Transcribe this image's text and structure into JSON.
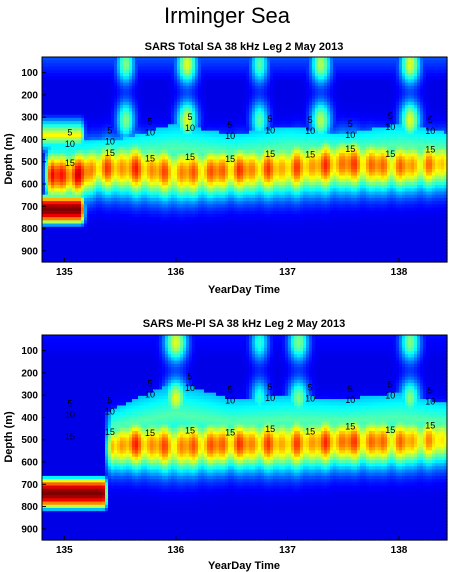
{
  "figure": {
    "suptitle": "Irminger Sea"
  },
  "chart_data": [
    {
      "type": "heatmap",
      "title": "SARS Total SA 38 kHz Leg 2 May 2013",
      "xlabel": "YearDay Time",
      "ylabel": "Depth (m)",
      "xlim": [
        134.8,
        138.43
      ],
      "ylim": [
        950,
        30
      ],
      "y_inverted": true,
      "x_ticks": [
        135,
        136,
        137,
        138
      ],
      "y_ticks": [
        100,
        200,
        300,
        400,
        500,
        600,
        700,
        800,
        900
      ],
      "contour_levels": [
        5,
        10,
        15
      ],
      "contour_labels": [
        "5",
        "10",
        "15"
      ],
      "colormap": "jet",
      "grid": false,
      "features": {
        "deep_layer": [
          {
            "x": 134.8,
            "depth": 560,
            "half_thickness": 70,
            "intensity": 19
          },
          {
            "x": 135.1,
            "depth": 560,
            "half_thickness": 70,
            "intensity": 19
          },
          {
            "x": 135.3,
            "depth": 530,
            "half_thickness": 70,
            "intensity": 16
          },
          {
            "x": 135.6,
            "depth": 530,
            "half_thickness": 75,
            "intensity": 17
          },
          {
            "x": 136.0,
            "depth": 550,
            "half_thickness": 75,
            "intensity": 16
          },
          {
            "x": 136.5,
            "depth": 540,
            "half_thickness": 70,
            "intensity": 17
          },
          {
            "x": 137.0,
            "depth": 530,
            "half_thickness": 75,
            "intensity": 16
          },
          {
            "x": 137.5,
            "depth": 510,
            "half_thickness": 75,
            "intensity": 17
          },
          {
            "x": 138.0,
            "depth": 520,
            "half_thickness": 70,
            "intensity": 16
          },
          {
            "x": 138.43,
            "depth": 510,
            "half_thickness": 70,
            "intensity": 15
          }
        ],
        "scatter_layer_top": [
          {
            "x": 134.8,
            "depth": 420
          },
          {
            "x": 135.5,
            "depth": 400
          },
          {
            "x": 136.0,
            "depth": 330
          },
          {
            "x": 136.5,
            "depth": 380
          },
          {
            "x": 137.0,
            "depth": 340
          },
          {
            "x": 137.5,
            "depth": 380
          },
          {
            "x": 138.0,
            "depth": 330
          },
          {
            "x": 138.43,
            "depth": 370
          }
        ],
        "plumes": [
          {
            "x": 135.55,
            "width": 0.08,
            "intensity": 9
          },
          {
            "x": 136.1,
            "width": 0.09,
            "intensity": 11
          },
          {
            "x": 136.75,
            "width": 0.08,
            "intensity": 8
          },
          {
            "x": 137.3,
            "width": 0.09,
            "intensity": 10
          },
          {
            "x": 138.1,
            "width": 0.09,
            "intensity": 11
          }
        ],
        "left_block": {
          "x_end": 135.15,
          "depth_top": 650,
          "depth_bottom": 780,
          "intensity": 20
        },
        "surface_band_intensity": 3
      }
    },
    {
      "type": "heatmap",
      "title": "SARS Me-Pl SA 38 kHz Leg 2 May 2013",
      "xlabel": "YearDay Time",
      "ylabel": "Depth (m)",
      "xlim": [
        134.8,
        138.43
      ],
      "ylim": [
        950,
        30
      ],
      "y_inverted": true,
      "x_ticks": [
        135,
        136,
        137,
        138
      ],
      "y_ticks": [
        100,
        200,
        300,
        400,
        500,
        600,
        700,
        800,
        900
      ],
      "contour_levels": [
        5,
        10,
        15
      ],
      "contour_labels": [
        "5",
        "10",
        "15"
      ],
      "colormap": "jet",
      "grid": false,
      "features": {
        "deep_layer": [
          {
            "x": 135.3,
            "depth": 540,
            "half_thickness": 65,
            "intensity": 15
          },
          {
            "x": 135.6,
            "depth": 520,
            "half_thickness": 70,
            "intensity": 17
          },
          {
            "x": 136.0,
            "depth": 530,
            "half_thickness": 75,
            "intensity": 16
          },
          {
            "x": 136.5,
            "depth": 520,
            "half_thickness": 70,
            "intensity": 17
          },
          {
            "x": 137.0,
            "depth": 520,
            "half_thickness": 75,
            "intensity": 16
          },
          {
            "x": 137.5,
            "depth": 510,
            "half_thickness": 70,
            "intensity": 17
          },
          {
            "x": 138.0,
            "depth": 510,
            "half_thickness": 70,
            "intensity": 16
          },
          {
            "x": 138.43,
            "depth": 500,
            "half_thickness": 70,
            "intensity": 14
          }
        ],
        "scatter_layer_top": [
          {
            "x": 135.35,
            "depth": 380
          },
          {
            "x": 136.0,
            "depth": 240
          },
          {
            "x": 136.5,
            "depth": 320
          },
          {
            "x": 137.0,
            "depth": 300
          },
          {
            "x": 137.5,
            "depth": 320
          },
          {
            "x": 138.0,
            "depth": 290
          },
          {
            "x": 138.43,
            "depth": 340
          }
        ],
        "plumes": [
          {
            "x": 136.0,
            "width": 0.1,
            "intensity": 11
          },
          {
            "x": 136.75,
            "width": 0.08,
            "intensity": 7
          },
          {
            "x": 137.1,
            "width": 0.09,
            "intensity": 9
          },
          {
            "x": 138.1,
            "width": 0.09,
            "intensity": 9
          }
        ],
        "left_block": {
          "x_end": 135.35,
          "depth_top": 670,
          "depth_bottom": 810,
          "intensity": 20
        },
        "start_x": 135.35,
        "surface_band_intensity": 1
      }
    }
  ]
}
